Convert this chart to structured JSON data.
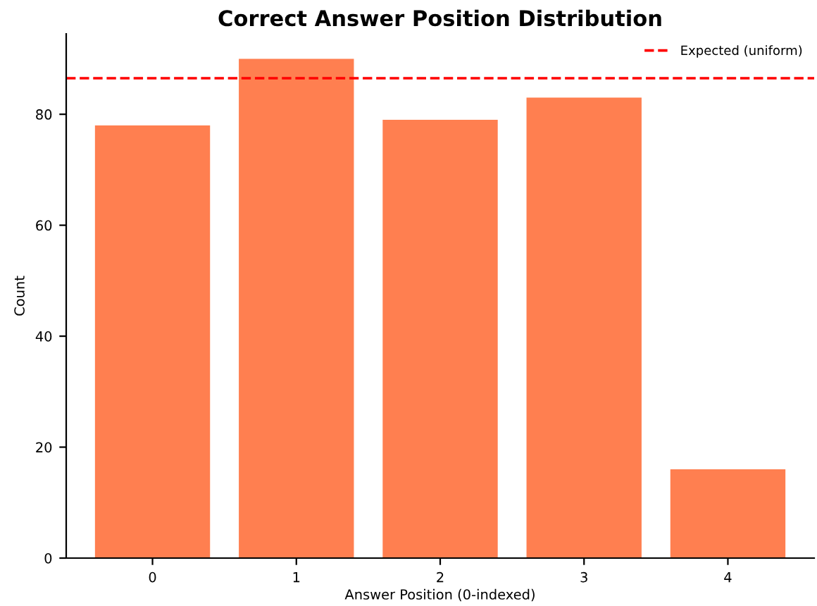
{
  "chart_data": {
    "type": "bar",
    "title": "Correct Answer Position Distribution",
    "xlabel": "Answer Position (0-indexed)",
    "ylabel": "Count",
    "categories": [
      "0",
      "1",
      "2",
      "3",
      "4"
    ],
    "values": [
      78,
      90,
      79,
      83,
      16
    ],
    "color": "#ff7f50",
    "ylim": [
      0,
      94.5
    ],
    "yticks": [
      0,
      20,
      40,
      60,
      80
    ],
    "ref_lines": [
      {
        "axis": "y",
        "value": 86.5,
        "label": "Expected (uniform)",
        "color": "#ff0000",
        "line_style": "dashed"
      }
    ],
    "grid": false,
    "legend": "top right"
  }
}
